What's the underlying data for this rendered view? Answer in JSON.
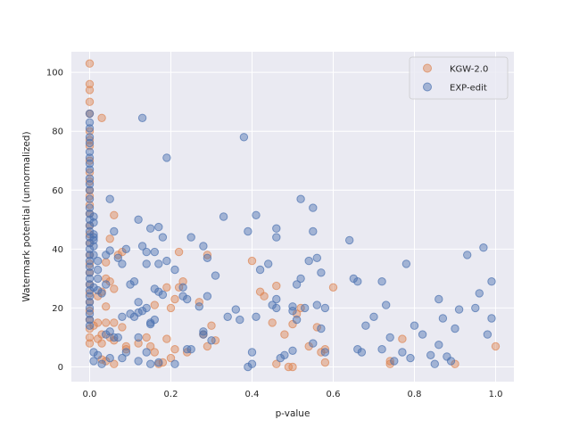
{
  "chart_data": {
    "type": "scatter",
    "title": "",
    "xlabel": "p-value",
    "ylabel": "Watermark potential (unnormalized)",
    "xlim": [
      -0.045,
      1.045
    ],
    "ylim": [
      -5,
      107
    ],
    "xticks": [
      0.0,
      0.2,
      0.4,
      0.6,
      0.8,
      1.0
    ],
    "xtick_labels": [
      "0.0",
      "0.2",
      "0.4",
      "0.6",
      "0.8",
      "1.0"
    ],
    "yticks": [
      0,
      20,
      40,
      60,
      80,
      100
    ],
    "ytick_labels": [
      "0",
      "20",
      "40",
      "60",
      "80",
      "100"
    ],
    "grid": true,
    "legend_position": "top-right",
    "series": [
      {
        "name": "KGW-2.0",
        "color": "#dd8452",
        "points": [
          [
            0.0,
            103
          ],
          [
            0.0,
            96
          ],
          [
            0.0,
            94
          ],
          [
            0.0,
            90
          ],
          [
            0.0,
            86
          ],
          [
            0.0,
            80
          ],
          [
            0.0,
            77
          ],
          [
            0.0,
            75
          ],
          [
            0.0,
            70
          ],
          [
            0.0,
            66
          ],
          [
            0.0,
            63
          ],
          [
            0.0,
            60
          ],
          [
            0.0,
            58
          ],
          [
            0.0,
            55
          ],
          [
            0.0,
            52
          ],
          [
            0.0,
            48
          ],
          [
            0.0,
            45
          ],
          [
            0.0,
            42
          ],
          [
            0.0,
            38
          ],
          [
            0.0,
            35
          ],
          [
            0.0,
            32
          ],
          [
            0.0,
            28
          ],
          [
            0.0,
            25
          ],
          [
            0.0,
            22
          ],
          [
            0.0,
            19
          ],
          [
            0.0,
            16
          ],
          [
            0.0,
            13
          ],
          [
            0.0,
            10
          ],
          [
            0.0,
            8
          ],
          [
            0.03,
            84.5
          ],
          [
            0.06,
            51.5
          ],
          [
            0.05,
            43.5
          ],
          [
            0.04,
            35.5
          ],
          [
            0.04,
            30
          ],
          [
            0.05,
            29
          ],
          [
            0.06,
            26.5
          ],
          [
            0.03,
            25.5
          ],
          [
            0.07,
            38
          ],
          [
            0.08,
            39
          ],
          [
            0.02,
            24
          ],
          [
            0.02,
            15
          ],
          [
            0.04,
            15
          ],
          [
            0.04,
            20.5
          ],
          [
            0.01,
            14
          ],
          [
            0.06,
            15
          ],
          [
            0.08,
            13.5
          ],
          [
            0.03,
            11
          ],
          [
            0.05,
            10
          ],
          [
            0.02,
            9.5
          ],
          [
            0.03,
            8
          ],
          [
            0.06,
            9
          ],
          [
            0.09,
            6
          ],
          [
            0.09,
            7
          ],
          [
            0.04,
            2
          ],
          [
            0.06,
            1
          ],
          [
            0.03,
            2.5
          ],
          [
            0.12,
            8
          ],
          [
            0.14,
            10
          ],
          [
            0.15,
            7
          ],
          [
            0.16,
            5
          ],
          [
            0.17,
            1
          ],
          [
            0.18,
            1.5
          ],
          [
            0.19,
            9.5
          ],
          [
            0.2,
            3
          ],
          [
            0.21,
            6
          ],
          [
            0.22,
            39
          ],
          [
            0.23,
            29
          ],
          [
            0.2,
            20
          ],
          [
            0.21,
            23
          ],
          [
            0.22,
            27
          ],
          [
            0.24,
            5
          ],
          [
            0.16,
            21
          ],
          [
            0.19,
            27
          ],
          [
            0.29,
            38
          ],
          [
            0.27,
            22
          ],
          [
            0.28,
            11
          ],
          [
            0.3,
            14
          ],
          [
            0.31,
            9
          ],
          [
            0.29,
            7
          ],
          [
            0.4,
            36
          ],
          [
            0.42,
            25.5
          ],
          [
            0.43,
            24
          ],
          [
            0.45,
            15
          ],
          [
            0.46,
            27.5
          ],
          [
            0.48,
            11
          ],
          [
            0.46,
            1
          ],
          [
            0.49,
            0
          ],
          [
            0.5,
            0
          ],
          [
            0.5,
            14.5
          ],
          [
            0.51,
            18
          ],
          [
            0.54,
            7
          ],
          [
            0.56,
            13.5
          ],
          [
            0.57,
            5
          ],
          [
            0.58,
            1.5
          ],
          [
            0.58,
            6
          ],
          [
            0.6,
            27
          ],
          [
            0.74,
            1
          ],
          [
            0.74,
            2
          ],
          [
            0.77,
            9.5
          ],
          [
            0.9,
            1
          ],
          [
            1.0,
            7
          ],
          [
            0.52,
            20
          ]
        ]
      },
      {
        "name": "EXP-edit",
        "color": "#4c72b0",
        "points": [
          [
            0.0,
            86
          ],
          [
            0.0,
            83
          ],
          [
            0.0,
            81
          ],
          [
            0.0,
            78
          ],
          [
            0.0,
            76
          ],
          [
            0.0,
            73
          ],
          [
            0.0,
            71
          ],
          [
            0.0,
            69
          ],
          [
            0.0,
            67
          ],
          [
            0.0,
            64
          ],
          [
            0.0,
            62
          ],
          [
            0.0,
            60
          ],
          [
            0.0,
            57
          ],
          [
            0.0,
            54
          ],
          [
            0.0,
            52
          ],
          [
            0.0,
            50
          ],
          [
            0.0,
            48
          ],
          [
            0.0,
            46
          ],
          [
            0.0,
            44
          ],
          [
            0.0,
            42
          ],
          [
            0.0,
            40
          ],
          [
            0.0,
            38
          ],
          [
            0.0,
            36
          ],
          [
            0.0,
            34
          ],
          [
            0.0,
            32
          ],
          [
            0.0,
            30
          ],
          [
            0.0,
            28
          ],
          [
            0.0,
            26
          ],
          [
            0.0,
            24
          ],
          [
            0.0,
            22
          ],
          [
            0.0,
            20
          ],
          [
            0.0,
            18
          ],
          [
            0.0,
            16
          ],
          [
            0.0,
            14
          ],
          [
            0.01,
            41
          ],
          [
            0.01,
            38
          ],
          [
            0.02,
            36
          ],
          [
            0.02,
            33
          ],
          [
            0.02,
            30
          ],
          [
            0.01,
            27
          ],
          [
            0.02,
            26
          ],
          [
            0.03,
            25
          ],
          [
            0.04,
            28
          ],
          [
            0.04,
            38
          ],
          [
            0.05,
            39.5
          ],
          [
            0.01,
            45
          ],
          [
            0.01,
            43
          ],
          [
            0.01,
            49
          ],
          [
            0.01,
            51
          ],
          [
            0.01,
            44
          ],
          [
            0.05,
            57
          ],
          [
            0.06,
            46
          ],
          [
            0.07,
            37
          ],
          [
            0.08,
            35
          ],
          [
            0.09,
            40
          ],
          [
            0.1,
            28
          ],
          [
            0.11,
            29
          ],
          [
            0.12,
            18.5
          ],
          [
            0.13,
            19
          ],
          [
            0.08,
            17
          ],
          [
            0.1,
            18
          ],
          [
            0.11,
            17
          ],
          [
            0.05,
            12
          ],
          [
            0.06,
            10
          ],
          [
            0.04,
            11
          ],
          [
            0.05,
            3
          ],
          [
            0.03,
            1
          ],
          [
            0.02,
            4
          ],
          [
            0.01,
            5
          ],
          [
            0.01,
            2
          ],
          [
            0.07,
            10
          ],
          [
            0.09,
            5
          ],
          [
            0.08,
            3
          ],
          [
            0.12,
            2
          ],
          [
            0.14,
            5
          ],
          [
            0.13,
            84.5
          ],
          [
            0.19,
            71
          ],
          [
            0.12,
            50
          ],
          [
            0.15,
            47
          ],
          [
            0.17,
            47.5
          ],
          [
            0.13,
            41
          ],
          [
            0.14,
            39
          ],
          [
            0.16,
            39
          ],
          [
            0.18,
            44
          ],
          [
            0.17,
            35
          ],
          [
            0.19,
            36
          ],
          [
            0.14,
            35
          ],
          [
            0.12,
            22
          ],
          [
            0.15,
            14.5
          ],
          [
            0.15,
            15
          ],
          [
            0.16,
            26.5
          ],
          [
            0.17,
            25.5
          ],
          [
            0.18,
            24.5
          ],
          [
            0.16,
            16
          ],
          [
            0.14,
            20
          ],
          [
            0.12,
            10
          ],
          [
            0.15,
            1
          ],
          [
            0.17,
            1.5
          ],
          [
            0.21,
            33
          ],
          [
            0.23,
            24
          ],
          [
            0.24,
            23
          ],
          [
            0.23,
            27
          ],
          [
            0.25,
            44
          ],
          [
            0.27,
            20.5
          ],
          [
            0.28,
            12
          ],
          [
            0.28,
            11
          ],
          [
            0.29,
            24
          ],
          [
            0.3,
            9
          ],
          [
            0.31,
            31
          ],
          [
            0.33,
            51
          ],
          [
            0.28,
            41
          ],
          [
            0.29,
            37
          ],
          [
            0.21,
            1
          ],
          [
            0.24,
            6
          ],
          [
            0.25,
            6
          ],
          [
            0.38,
            78
          ],
          [
            0.39,
            46
          ],
          [
            0.41,
            51.5
          ],
          [
            0.42,
            33
          ],
          [
            0.44,
            35
          ],
          [
            0.39,
            0
          ],
          [
            0.4,
            1
          ],
          [
            0.4,
            5
          ],
          [
            0.41,
            17
          ],
          [
            0.34,
            17
          ],
          [
            0.36,
            19.5
          ],
          [
            0.37,
            16
          ],
          [
            0.45,
            21
          ],
          [
            0.46,
            20
          ],
          [
            0.46,
            23
          ],
          [
            0.46,
            44
          ],
          [
            0.46,
            47
          ],
          [
            0.47,
            3
          ],
          [
            0.48,
            4
          ],
          [
            0.5,
            19
          ],
          [
            0.5,
            20.5
          ],
          [
            0.51,
            16
          ],
          [
            0.5,
            5.5
          ],
          [
            0.51,
            28
          ],
          [
            0.52,
            57
          ],
          [
            0.52,
            30
          ],
          [
            0.53,
            20
          ],
          [
            0.54,
            36
          ],
          [
            0.55,
            46
          ],
          [
            0.55,
            54
          ],
          [
            0.55,
            8
          ],
          [
            0.56,
            37
          ],
          [
            0.57,
            32
          ],
          [
            0.56,
            21
          ],
          [
            0.58,
            20
          ],
          [
            0.58,
            5
          ],
          [
            0.57,
            13
          ],
          [
            0.64,
            43
          ],
          [
            0.65,
            30
          ],
          [
            0.66,
            29
          ],
          [
            0.66,
            6
          ],
          [
            0.67,
            5
          ],
          [
            0.68,
            14
          ],
          [
            0.7,
            17
          ],
          [
            0.72,
            29
          ],
          [
            0.73,
            21
          ],
          [
            0.74,
            10
          ],
          [
            0.72,
            6
          ],
          [
            0.75,
            2
          ],
          [
            0.77,
            5
          ],
          [
            0.78,
            35
          ],
          [
            0.79,
            3
          ],
          [
            0.8,
            14
          ],
          [
            0.82,
            11
          ],
          [
            0.84,
            4
          ],
          [
            0.85,
            1
          ],
          [
            0.86,
            7.5
          ],
          [
            0.86,
            23
          ],
          [
            0.87,
            16.5
          ],
          [
            0.88,
            3.5
          ],
          [
            0.89,
            2
          ],
          [
            0.9,
            13
          ],
          [
            0.91,
            19.5
          ],
          [
            0.93,
            38
          ],
          [
            0.95,
            20
          ],
          [
            0.96,
            25
          ],
          [
            0.97,
            40.5
          ],
          [
            0.98,
            11
          ],
          [
            0.99,
            16.5
          ],
          [
            0.99,
            29
          ]
        ]
      }
    ]
  }
}
